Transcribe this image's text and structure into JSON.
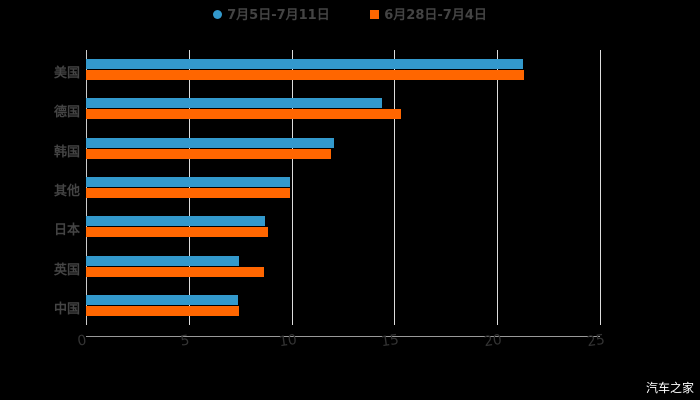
{
  "chart_data": {
    "type": "bar",
    "orientation": "horizontal",
    "title": "",
    "xlabel": "",
    "ylabel": "",
    "categories": [
      "美国",
      "德国",
      "韩国",
      "其他",
      "日本",
      "英国",
      "中国"
    ],
    "series": [
      {
        "name": "7月5日-7月11日",
        "color": "#3399cc",
        "values": [
          21.25,
          14.4,
          12.05,
          9.9,
          8.7,
          7.45,
          7.4
        ]
      },
      {
        "name": "6月28日-7月4日",
        "color": "#ff6600",
        "values": [
          21.3,
          15.3,
          11.9,
          9.9,
          8.85,
          8.65,
          7.45
        ]
      }
    ],
    "xlim": [
      0,
      25
    ],
    "xticks": [
      "0",
      "5",
      "10",
      "15",
      "20",
      "25"
    ],
    "grid": true,
    "legend_position": "top"
  },
  "legend": {
    "series1": "7月5日-7月11日",
    "series2": "6月28日-7月4日"
  },
  "watermark": "汽车之家"
}
